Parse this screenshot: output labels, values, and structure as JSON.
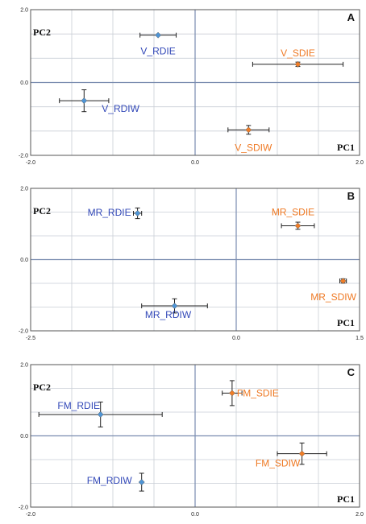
{
  "figure": {
    "colors": {
      "blue": "#4f95d6",
      "blue_label": "#3349b8",
      "orange": "#f07d27",
      "orange_label": "#ef7a25",
      "grid": "#c9ced6",
      "zero": "#7a8db0",
      "frame": "#555555",
      "error_bar": "#222222"
    }
  },
  "chart_data": [
    {
      "type": "scatter",
      "panel_label": "A",
      "xlabel": "PC1",
      "ylabel": "PC2",
      "xlim": [
        -2.0,
        2.0
      ],
      "ylim": [
        -2.0,
        2.0
      ],
      "x_ticks": [
        -2.0,
        0.0,
        2.0
      ],
      "y_ticks": [
        -2.0,
        0.0,
        2.0
      ],
      "x_tick_labels": [
        "-2.0",
        "0.0",
        "2.0"
      ],
      "y_tick_labels": [
        "-2.0",
        "0.0",
        "2.0"
      ],
      "grid": true,
      "points": [
        {
          "label": "V_RDIE",
          "x": -0.45,
          "y": 1.3,
          "xerr": 0.22,
          "yerr": 0.0,
          "color": "blue"
        },
        {
          "label": "V_SDIE",
          "x": 1.25,
          "y": 0.5,
          "xerr": 0.55,
          "yerr": 0.06,
          "color": "orange"
        },
        {
          "label": "V_RDIW",
          "x": -1.35,
          "y": -0.5,
          "xerr": 0.3,
          "yerr": 0.3,
          "color": "blue"
        },
        {
          "label": "V_SDIW",
          "x": 0.65,
          "y": -1.3,
          "xerr": 0.25,
          "yerr": 0.12,
          "color": "orange"
        }
      ]
    },
    {
      "type": "scatter",
      "panel_label": "B",
      "xlabel": "PC1",
      "ylabel": "PC2",
      "xlim": [
        -2.5,
        1.5
      ],
      "ylim": [
        -2.0,
        2.0
      ],
      "x_ticks": [
        -2.5,
        0.0,
        1.5
      ],
      "y_ticks": [
        -2.0,
        0.0,
        2.0
      ],
      "x_tick_labels": [
        "-2.5",
        "0.0",
        "1.5"
      ],
      "y_tick_labels": [
        "-2.0",
        "0.0",
        "2.0"
      ],
      "grid": true,
      "points": [
        {
          "label": "MR_RDIE",
          "x": -1.2,
          "y": 1.3,
          "xerr": 0.05,
          "yerr": 0.15,
          "color": "blue"
        },
        {
          "label": "MR_SDIE",
          "x": 0.75,
          "y": 0.95,
          "xerr": 0.2,
          "yerr": 0.1,
          "color": "orange"
        },
        {
          "label": "MR_SDIW",
          "x": 1.3,
          "y": -0.6,
          "xerr": 0.04,
          "yerr": 0.06,
          "color": "orange"
        },
        {
          "label": "MR_RDIW",
          "x": -0.75,
          "y": -1.3,
          "xerr": 0.4,
          "yerr": 0.2,
          "color": "blue"
        }
      ]
    },
    {
      "type": "scatter",
      "panel_label": "C",
      "xlabel": "PC1",
      "ylabel": "PC2",
      "xlim": [
        -2.0,
        2.0
      ],
      "ylim": [
        -2.0,
        2.0
      ],
      "x_ticks": [
        -2.0,
        0.0,
        2.0
      ],
      "y_ticks": [
        -2.0,
        0.0,
        2.0
      ],
      "x_tick_labels": [
        "-2.0",
        "0.0",
        "2.0"
      ],
      "y_tick_labels": [
        "-2.0",
        "0.0",
        "2.0"
      ],
      "grid": true,
      "points": [
        {
          "label": "FM_SDIE",
          "x": 0.45,
          "y": 1.2,
          "xerr": 0.12,
          "yerr": 0.35,
          "color": "orange"
        },
        {
          "label": "FM_RDIE",
          "x": -1.15,
          "y": 0.6,
          "xerr": 0.75,
          "yerr": 0.35,
          "color": "blue"
        },
        {
          "label": "FM_SDIW",
          "x": 1.3,
          "y": -0.5,
          "xerr": 0.3,
          "yerr": 0.3,
          "color": "orange"
        },
        {
          "label": "FM_RDIW",
          "x": -0.65,
          "y": -1.3,
          "xerr": 0.0,
          "yerr": 0.25,
          "color": "blue"
        }
      ]
    }
  ]
}
